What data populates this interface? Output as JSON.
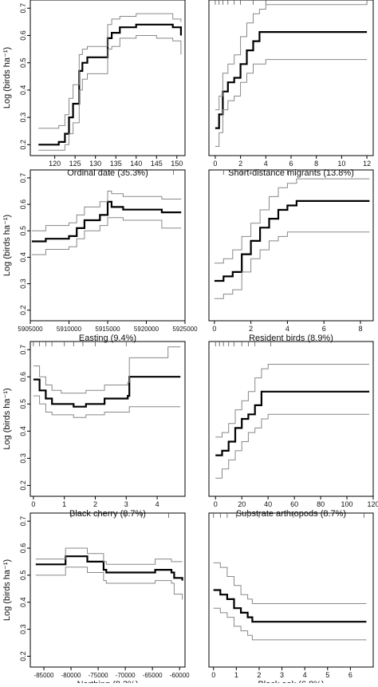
{
  "figure": {
    "ylabel": "Log (birds ha⁻¹)"
  },
  "chart_data": [
    {
      "type": "line",
      "xlabel": "Ordinal date (35.3%)",
      "ylabel": "Log (birds ha⁻¹)",
      "xlim": [
        114,
        152
      ],
      "ylim": [
        0.16,
        0.73
      ],
      "xticks": [
        120,
        125,
        130,
        135,
        140,
        145,
        150
      ],
      "xtick_labels": [
        "120",
        "125",
        "130",
        "135",
        "140",
        "145",
        "150"
      ],
      "yticks": [
        0.2,
        0.3,
        0.4,
        0.5,
        0.6,
        0.7
      ],
      "ytick_labels": [
        "0.2",
        "0.3",
        "0.4",
        "0.5",
        "0.6",
        "0.7"
      ],
      "rug": [],
      "series": [
        {
          "role": "fit",
          "color": "#000000",
          "x": [
            116,
            119,
            121,
            122.5,
            123.5,
            124.5,
            125.3,
            126,
            126.8,
            128,
            132.5,
            133,
            134,
            136,
            140,
            145,
            149,
            151
          ],
          "y": [
            0.2,
            0.2,
            0.21,
            0.24,
            0.3,
            0.35,
            0.35,
            0.47,
            0.5,
            0.52,
            0.52,
            0.59,
            0.61,
            0.63,
            0.64,
            0.64,
            0.63,
            0.6
          ]
        },
        {
          "role": "upper",
          "color": "#888888",
          "x": [
            116,
            119,
            121,
            122.5,
            123.5,
            124.5,
            125.3,
            126,
            126.8,
            128,
            132.5,
            133,
            134,
            136,
            140,
            145,
            149,
            151
          ],
          "y": [
            0.26,
            0.26,
            0.27,
            0.31,
            0.37,
            0.42,
            0.42,
            0.53,
            0.55,
            0.56,
            0.56,
            0.64,
            0.66,
            0.67,
            0.68,
            0.68,
            0.66,
            0.65
          ]
        },
        {
          "role": "lower",
          "color": "#888888",
          "x": [
            116,
            119,
            121,
            122.5,
            123.5,
            124.5,
            125.3,
            126,
            126.8,
            128,
            132.5,
            133,
            134,
            136,
            140,
            145,
            149,
            151
          ],
          "y": [
            0.18,
            0.18,
            0.18,
            0.2,
            0.24,
            0.28,
            0.28,
            0.4,
            0.44,
            0.46,
            0.46,
            0.55,
            0.56,
            0.59,
            0.6,
            0.59,
            0.58,
            0.53
          ]
        }
      ]
    },
    {
      "type": "line",
      "xlabel": "Short-distance migrants (13.8%)",
      "xlim": [
        -0.5,
        12.5
      ],
      "ylim": [
        0.4,
        0.74
      ],
      "xticks": [
        0,
        2,
        4,
        6,
        8,
        10,
        12
      ],
      "xtick_labels": [
        "0",
        "2",
        "4",
        "6",
        "8",
        "10",
        "12"
      ],
      "yticks": [],
      "ytick_labels": [],
      "rug": [
        0,
        0.3,
        0.6,
        1,
        1.5,
        2,
        3,
        4,
        12
      ],
      "series": [
        {
          "role": "fit",
          "color": "#000000",
          "x": [
            0,
            0.3,
            0.6,
            1,
            1.5,
            2,
            2.5,
            3,
            3.5,
            4,
            12
          ],
          "y": [
            0.46,
            0.49,
            0.54,
            0.56,
            0.57,
            0.6,
            0.63,
            0.65,
            0.67,
            0.67,
            0.67
          ]
        },
        {
          "role": "upper",
          "color": "#888888",
          "x": [
            0,
            0.3,
            0.6,
            1,
            1.5,
            2,
            2.5,
            3,
            3.5,
            4,
            12
          ],
          "y": [
            0.5,
            0.53,
            0.58,
            0.6,
            0.62,
            0.66,
            0.69,
            0.71,
            0.72,
            0.73,
            0.73
          ]
        },
        {
          "role": "lower",
          "color": "#888888",
          "x": [
            0,
            0.3,
            0.6,
            1,
            1.5,
            2,
            2.5,
            3,
            3.5,
            4,
            12
          ],
          "y": [
            0.42,
            0.45,
            0.5,
            0.52,
            0.53,
            0.56,
            0.58,
            0.6,
            0.6,
            0.61,
            0.61
          ]
        }
      ]
    },
    {
      "type": "line",
      "xlabel": "Easting (9.4%)",
      "ylabel": "Log (birds ha⁻¹)",
      "xlim": [
        5905000,
        5925000
      ],
      "ylim": [
        0.16,
        0.73
      ],
      "xticks": [
        5905000,
        5910000,
        5915000,
        5920000,
        5925000
      ],
      "xtick_labels": [
        "5905000",
        "5910000",
        "5915000",
        "5920000",
        "5925000"
      ],
      "yticks": [
        0.2,
        0.3,
        0.4,
        0.5,
        0.6,
        0.7
      ],
      "ytick_labels": [
        "0.2",
        "0.3",
        "0.4",
        "0.5",
        "0.6",
        "0.7"
      ],
      "rug": [
        5912000,
        5915200,
        5919000,
        5923500
      ],
      "series": [
        {
          "role": "fit",
          "color": "#000000",
          "x": [
            5905200,
            5907000,
            5909000,
            5910000,
            5911000,
            5912000,
            5914000,
            5915000,
            5915500,
            5917000,
            5920000,
            5922000,
            5924500
          ],
          "y": [
            0.46,
            0.47,
            0.47,
            0.48,
            0.51,
            0.54,
            0.56,
            0.61,
            0.59,
            0.58,
            0.58,
            0.57,
            0.57
          ]
        },
        {
          "role": "upper",
          "color": "#888888",
          "x": [
            5905200,
            5907000,
            5909000,
            5910000,
            5911000,
            5912000,
            5914000,
            5915000,
            5915500,
            5917000,
            5920000,
            5922000,
            5924500
          ],
          "y": [
            0.5,
            0.52,
            0.52,
            0.53,
            0.56,
            0.59,
            0.61,
            0.65,
            0.64,
            0.63,
            0.63,
            0.62,
            0.62
          ]
        },
        {
          "role": "lower",
          "color": "#888888",
          "x": [
            5905200,
            5907000,
            5909000,
            5910000,
            5911000,
            5912000,
            5914000,
            5915000,
            5915500,
            5917000,
            5920000,
            5922000,
            5924500
          ],
          "y": [
            0.41,
            0.43,
            0.43,
            0.44,
            0.47,
            0.5,
            0.52,
            0.55,
            0.55,
            0.54,
            0.54,
            0.51,
            0.51
          ]
        }
      ]
    },
    {
      "type": "line",
      "xlabel": "Resident birds (8.9%)",
      "xlim": [
        -0.3,
        8.7
      ],
      "ylim": [
        0.4,
        0.74
      ],
      "xticks": [
        0,
        2,
        4,
        6,
        8
      ],
      "xtick_labels": [
        "0",
        "2",
        "4",
        "6",
        "8"
      ],
      "yticks": [],
      "ytick_labels": [],
      "rug": [
        0.5,
        1,
        1.5,
        2,
        3,
        4
      ],
      "series": [
        {
          "role": "fit",
          "color": "#000000",
          "x": [
            0,
            0.5,
            1,
            1.5,
            2,
            2.5,
            3,
            3.5,
            4,
            4.5,
            8.5
          ],
          "y": [
            0.49,
            0.5,
            0.51,
            0.55,
            0.58,
            0.61,
            0.63,
            0.65,
            0.66,
            0.67,
            0.67
          ]
        },
        {
          "role": "upper",
          "color": "#888888",
          "x": [
            0,
            0.5,
            1,
            1.5,
            2,
            2.5,
            3,
            3.5,
            4,
            4.5,
            8.5
          ],
          "y": [
            0.53,
            0.54,
            0.56,
            0.59,
            0.62,
            0.65,
            0.68,
            0.7,
            0.71,
            0.72,
            0.72
          ]
        },
        {
          "role": "lower",
          "color": "#888888",
          "x": [
            0,
            0.5,
            1,
            1.5,
            2,
            2.5,
            3,
            3.5,
            4,
            4.5,
            8.5
          ],
          "y": [
            0.45,
            0.46,
            0.47,
            0.51,
            0.54,
            0.56,
            0.58,
            0.59,
            0.6,
            0.6,
            0.6
          ]
        }
      ]
    },
    {
      "type": "line",
      "xlabel": "Black cherry (8.7%)",
      "ylabel": "Log (birds ha⁻¹)",
      "xlim": [
        -0.1,
        4.9
      ],
      "ylim": [
        0.16,
        0.73
      ],
      "xticks": [
        0,
        1,
        2,
        3,
        4
      ],
      "xtick_labels": [
        "0",
        "1",
        "2",
        "3",
        "4"
      ],
      "yticks": [
        0.2,
        0.3,
        0.4,
        0.5,
        0.6,
        0.7
      ],
      "ytick_labels": [
        "0.2",
        "0.3",
        "0.4",
        "0.5",
        "0.6",
        "0.7"
      ],
      "rug": [
        0,
        0.2,
        0.4,
        0.6,
        1,
        1.3,
        1.6,
        2,
        3
      ],
      "series": [
        {
          "role": "fit",
          "color": "#000000",
          "x": [
            0,
            0.2,
            0.4,
            0.6,
            0.9,
            1.3,
            1.5,
            1.7,
            2.3,
            3.05,
            3.1,
            4.75
          ],
          "y": [
            0.59,
            0.55,
            0.52,
            0.5,
            0.5,
            0.49,
            0.49,
            0.5,
            0.52,
            0.53,
            0.6,
            0.6
          ]
        },
        {
          "role": "upper",
          "color": "#888888",
          "x": [
            0,
            0.2,
            0.4,
            0.6,
            0.9,
            1.3,
            1.5,
            1.7,
            2.3,
            3.05,
            3.1,
            4.3,
            4.35,
            4.75
          ],
          "y": [
            0.64,
            0.6,
            0.57,
            0.55,
            0.54,
            0.54,
            0.54,
            0.55,
            0.57,
            0.58,
            0.67,
            0.67,
            0.71,
            0.71
          ]
        },
        {
          "role": "lower",
          "color": "#888888",
          "x": [
            0,
            0.2,
            0.4,
            0.6,
            0.9,
            1.3,
            1.5,
            1.7,
            2.3,
            3.05,
            3.1,
            4.75
          ],
          "y": [
            0.53,
            0.5,
            0.47,
            0.46,
            0.46,
            0.45,
            0.45,
            0.46,
            0.47,
            0.47,
            0.49,
            0.49
          ]
        }
      ]
    },
    {
      "type": "line",
      "xlabel": "Substrate arthropods (8.7%)",
      "xlim": [
        -5,
        120
      ],
      "ylim": [
        0.4,
        0.74
      ],
      "xticks": [
        0,
        20,
        40,
        60,
        80,
        100,
        120
      ],
      "xtick_labels": [
        "0",
        "20",
        "40",
        "60",
        "80",
        "100",
        "120"
      ],
      "yticks": [],
      "ytick_labels": [],
      "rug": [
        0,
        3,
        6,
        10,
        14,
        20,
        25,
        30,
        42
      ],
      "series": [
        {
          "role": "fit",
          "color": "#000000",
          "x": [
            0,
            5,
            10,
            15,
            20,
            25,
            30,
            35,
            40,
            117
          ],
          "y": [
            0.49,
            0.5,
            0.52,
            0.55,
            0.57,
            0.58,
            0.6,
            0.63,
            0.63,
            0.63
          ]
        },
        {
          "role": "upper",
          "color": "#888888",
          "x": [
            0,
            5,
            10,
            15,
            20,
            25,
            30,
            35,
            40,
            117
          ],
          "y": [
            0.53,
            0.54,
            0.56,
            0.59,
            0.61,
            0.63,
            0.66,
            0.68,
            0.69,
            0.69
          ]
        },
        {
          "role": "lower",
          "color": "#888888",
          "x": [
            0,
            5,
            10,
            15,
            20,
            25,
            30,
            35,
            40,
            117
          ],
          "y": [
            0.44,
            0.46,
            0.48,
            0.5,
            0.52,
            0.54,
            0.55,
            0.57,
            0.58,
            0.58
          ]
        }
      ]
    },
    {
      "type": "line",
      "xlabel": "Northing (8.3%)",
      "ylabel": "Log (birds ha⁻¹)",
      "xlim": [
        -87500,
        -59000
      ],
      "ylim": [
        0.16,
        0.73
      ],
      "xticks": [
        -85000,
        -80000,
        -75000,
        -70000,
        -65000,
        -60000
      ],
      "xtick_labels": [
        "-85000",
        "-80000",
        "-75000",
        "-70000",
        "-65000",
        "-60000"
      ],
      "yticks": [
        0.2,
        0.3,
        0.4,
        0.5,
        0.6,
        0.7
      ],
      "ytick_labels": [
        "0.2",
        "0.3",
        "0.4",
        "0.5",
        "0.6",
        "0.7"
      ],
      "rug": [
        -80000,
        -75000,
        -70000,
        -67000,
        -62000
      ],
      "series": [
        {
          "role": "fit",
          "color": "#000000",
          "x": [
            -86500,
            -82000,
            -81000,
            -78000,
            -77000,
            -74000,
            -73500,
            -70000,
            -65000,
            -64500,
            -61500,
            -61000,
            -59500
          ],
          "y": [
            0.54,
            0.54,
            0.57,
            0.57,
            0.55,
            0.52,
            0.51,
            0.51,
            0.51,
            0.52,
            0.51,
            0.49,
            0.48
          ]
        },
        {
          "role": "upper",
          "color": "#888888",
          "x": [
            -86500,
            -82000,
            -81000,
            -78000,
            -77000,
            -74000,
            -73500,
            -70000,
            -65000,
            -64500,
            -61500,
            -61000,
            -59500
          ],
          "y": [
            0.56,
            0.56,
            0.6,
            0.6,
            0.58,
            0.55,
            0.54,
            0.54,
            0.54,
            0.56,
            0.55,
            0.55,
            0.55
          ]
        },
        {
          "role": "lower",
          "color": "#888888",
          "x": [
            -86500,
            -82000,
            -81000,
            -78000,
            -77000,
            -74000,
            -73500,
            -70000,
            -65000,
            -64500,
            -61500,
            -61000,
            -59500
          ],
          "y": [
            0.5,
            0.5,
            0.53,
            0.53,
            0.51,
            0.48,
            0.47,
            0.47,
            0.47,
            0.48,
            0.47,
            0.43,
            0.41
          ]
        }
      ]
    },
    {
      "type": "line",
      "xlabel": "Black oak (6.8%)",
      "xlim": [
        -0.2,
        7
      ],
      "ylim": [
        0.4,
        0.74
      ],
      "xticks": [
        0,
        1,
        2,
        3,
        4,
        5,
        6
      ],
      "xtick_labels": [
        "0",
        "1",
        "2",
        "3",
        "4",
        "5",
        "6"
      ],
      "yticks": [],
      "ytick_labels": [],
      "rug": [
        0,
        0.3,
        0.6,
        1,
        1.5,
        2,
        3.5,
        6.6
      ],
      "series": [
        {
          "role": "fit",
          "color": "#000000",
          "x": [
            0,
            0.3,
            0.6,
            0.9,
            1.2,
            1.5,
            1.7,
            3,
            6.7
          ],
          "y": [
            0.57,
            0.56,
            0.55,
            0.53,
            0.52,
            0.51,
            0.5,
            0.5,
            0.5
          ]
        },
        {
          "role": "upper",
          "color": "#888888",
          "x": [
            0,
            0.3,
            0.6,
            0.9,
            1.2,
            1.5,
            1.7,
            3,
            6.7
          ],
          "y": [
            0.63,
            0.62,
            0.6,
            0.58,
            0.56,
            0.55,
            0.54,
            0.54,
            0.54
          ]
        },
        {
          "role": "lower",
          "color": "#888888",
          "x": [
            0,
            0.3,
            0.6,
            0.9,
            1.2,
            1.5,
            1.7,
            3,
            6.7
          ],
          "y": [
            0.53,
            0.52,
            0.51,
            0.49,
            0.48,
            0.47,
            0.46,
            0.46,
            0.46
          ]
        }
      ]
    }
  ]
}
